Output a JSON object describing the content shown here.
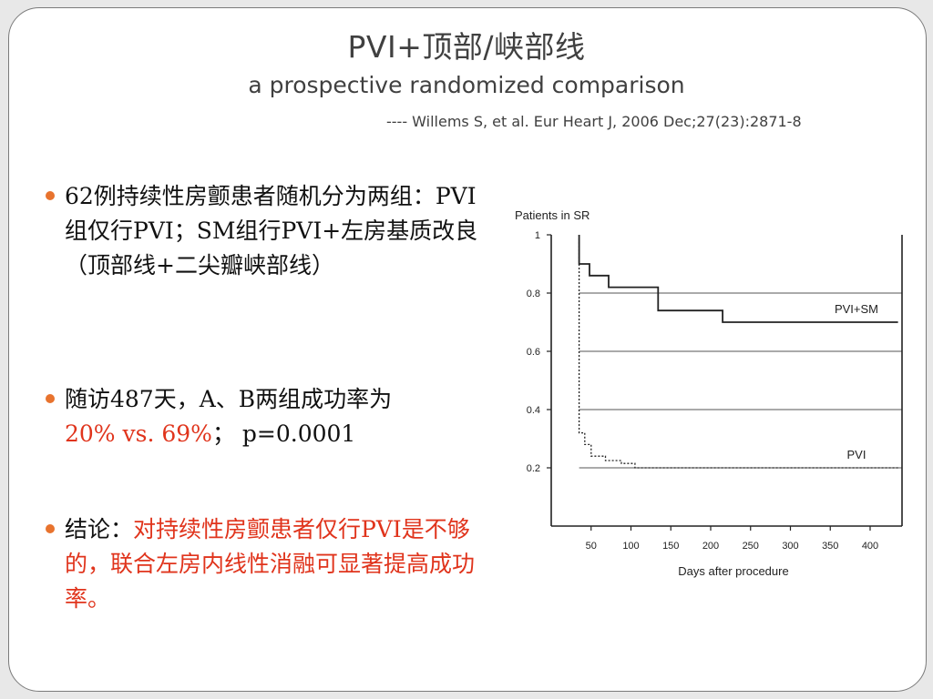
{
  "slide": {
    "title": "PVI+顶部/峡部线",
    "subtitle": "a prospective randomized comparison",
    "citation": "---- Willems S, et al. Eur Heart J, 2006 Dec;27(23):2871-8"
  },
  "bullets": [
    {
      "text": "62例持续性房颤患者随机分为两组：PVI组仅行PVI；SM组行PVI+左房基质改良（顶部线+二尖瓣峡部线）"
    },
    {
      "text": "随访487天，A、B两组成功率为",
      "highlight": "20% vs. 69%",
      "tail": "；  p=0.0001"
    },
    {
      "prefix": "结论：",
      "highlight": "对持续性房颤患者仅行PVI是不够的，联合左房内线性消融可显著提高成功率。"
    }
  ],
  "colors": {
    "accent_red": "#e0341c",
    "bullet_dot": "#e8732e",
    "text": "#404040"
  },
  "chart_data": {
    "type": "line",
    "ylabel": "Patients in SR",
    "xlabel": "Days after procedure",
    "xlim": [
      0,
      440
    ],
    "ylim": [
      0,
      1
    ],
    "x_ticks": [
      50,
      100,
      150,
      200,
      250,
      300,
      350,
      400
    ],
    "y_ticks": [
      {
        "value": 0.2,
        "label": "0.2"
      },
      {
        "value": 0.4,
        "label": "0.4"
      },
      {
        "value": 0.6,
        "label": "0.6"
      },
      {
        "value": 0.8,
        "label": "0.8"
      },
      {
        "value": 1.0,
        "label": "1"
      }
    ],
    "gridlines_y": [
      0.2,
      0.4,
      0.6,
      0.8
    ],
    "series": [
      {
        "name": "PVI+SM",
        "style": "step-solid",
        "points": [
          [
            35,
            1.0
          ],
          [
            35,
            0.9
          ],
          [
            48,
            0.9
          ],
          [
            48,
            0.86
          ],
          [
            72,
            0.86
          ],
          [
            72,
            0.82
          ],
          [
            134,
            0.82
          ],
          [
            134,
            0.74
          ],
          [
            215,
            0.74
          ],
          [
            215,
            0.7
          ],
          [
            435,
            0.7
          ]
        ]
      },
      {
        "name": "PVI",
        "style": "step-dotted",
        "points": [
          [
            35,
            1.0
          ],
          [
            35,
            0.32
          ],
          [
            42,
            0.32
          ],
          [
            42,
            0.28
          ],
          [
            50,
            0.28
          ],
          [
            50,
            0.24
          ],
          [
            68,
            0.24
          ],
          [
            68,
            0.225
          ],
          [
            88,
            0.225
          ],
          [
            88,
            0.215
          ],
          [
            105,
            0.215
          ],
          [
            105,
            0.2
          ],
          [
            435,
            0.2
          ]
        ]
      }
    ]
  }
}
